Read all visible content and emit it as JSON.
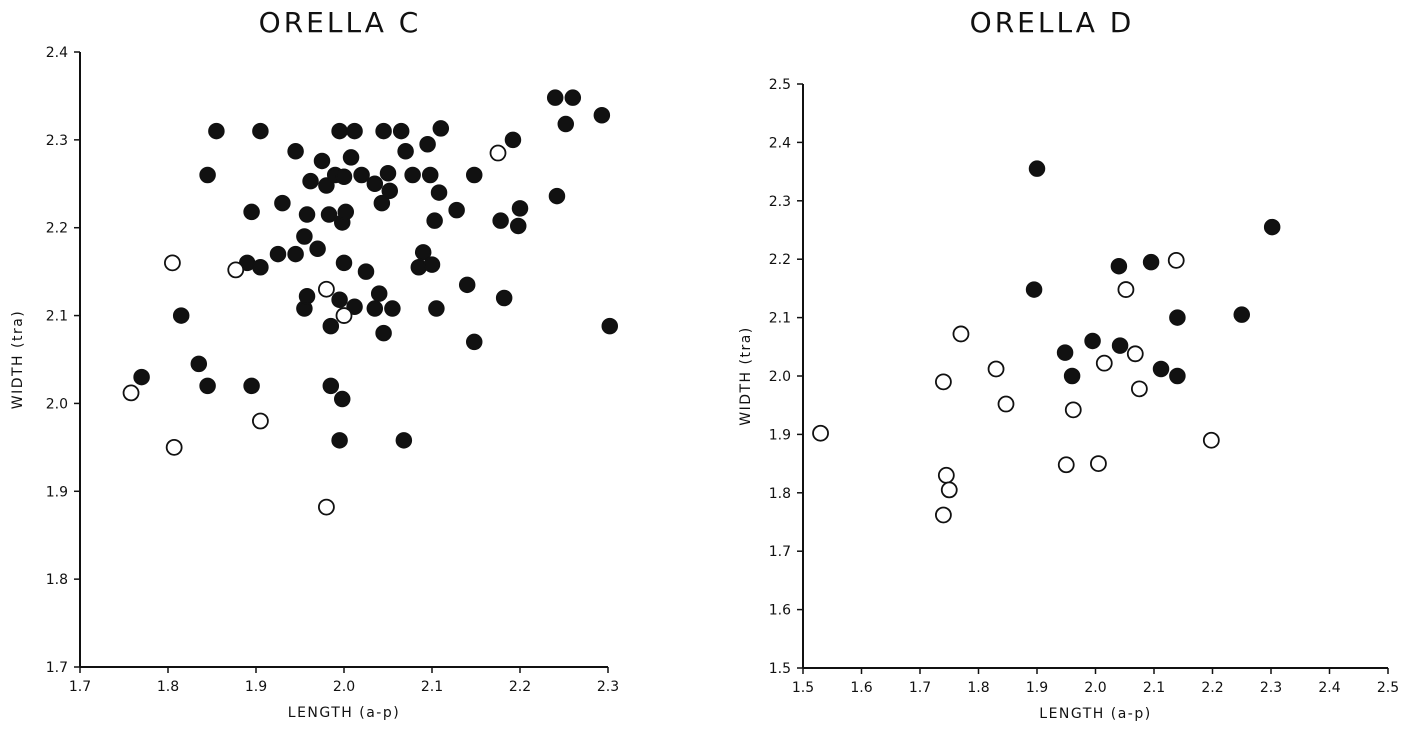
{
  "chart_data": [
    {
      "type": "scatter",
      "title": "ORELLA C",
      "xlabel": "LENGTH (a-p)",
      "ylabel": "WIDTH (tra)",
      "xlim": [
        1.7,
        2.3
      ],
      "ylim": [
        1.7,
        2.4
      ],
      "xticks": [
        "1.7",
        "1.8",
        "1.9",
        "2.0",
        "2.1",
        "2.2",
        "2.3"
      ],
      "yticks": [
        "1.7",
        "1.8",
        "1.9",
        "2.0",
        "2.1",
        "2.2",
        "2.3",
        "2.4"
      ],
      "grid": false,
      "series": [
        {
          "marker": "filled-circle",
          "points": [
            [
              1.77,
              2.03
            ],
            [
              1.815,
              2.1
            ],
            [
              1.835,
              2.045
            ],
            [
              1.845,
              2.02
            ],
            [
              1.845,
              2.26
            ],
            [
              1.855,
              2.31
            ],
            [
              1.89,
              2.16
            ],
            [
              1.895,
              2.02
            ],
            [
              1.895,
              2.218
            ],
            [
              1.905,
              2.31
            ],
            [
              1.905,
              2.155
            ],
            [
              1.925,
              2.17
            ],
            [
              1.93,
              2.228
            ],
            [
              1.945,
              2.287
            ],
            [
              1.945,
              2.17
            ],
            [
              1.955,
              2.108
            ],
            [
              1.955,
              2.19
            ],
            [
              1.958,
              2.122
            ],
            [
              1.958,
              2.215
            ],
            [
              1.962,
              2.253
            ],
            [
              1.97,
              2.176
            ],
            [
              1.975,
              2.276
            ],
            [
              1.98,
              2.248
            ],
            [
              1.983,
              2.215
            ],
            [
              1.985,
              2.088
            ],
            [
              1.985,
              2.02
            ],
            [
              1.99,
              2.26
            ],
            [
              1.995,
              2.31
            ],
            [
              1.995,
              2.118
            ],
            [
              1.995,
              1.958
            ],
            [
              1.998,
              2.206
            ],
            [
              1.998,
              2.005
            ],
            [
              2.0,
              2.258
            ],
            [
              2.0,
              2.16
            ],
            [
              2.002,
              2.218
            ],
            [
              2.008,
              2.28
            ],
            [
              2.012,
              2.31
            ],
            [
              2.012,
              2.11
            ],
            [
              2.02,
              2.26
            ],
            [
              2.025,
              2.15
            ],
            [
              2.035,
              2.25
            ],
            [
              2.035,
              2.108
            ],
            [
              2.04,
              2.125
            ],
            [
              2.043,
              2.228
            ],
            [
              2.045,
              2.31
            ],
            [
              2.045,
              2.08
            ],
            [
              2.05,
              2.262
            ],
            [
              2.052,
              2.242
            ],
            [
              2.055,
              2.108
            ],
            [
              2.065,
              2.31
            ],
            [
              2.068,
              1.958
            ],
            [
              2.07,
              2.287
            ],
            [
              2.078,
              2.26
            ],
            [
              2.085,
              2.155
            ],
            [
              2.09,
              2.172
            ],
            [
              2.095,
              2.295
            ],
            [
              2.098,
              2.26
            ],
            [
              2.1,
              2.158
            ],
            [
              2.103,
              2.208
            ],
            [
              2.105,
              2.108
            ],
            [
              2.108,
              2.24
            ],
            [
              2.11,
              2.313
            ],
            [
              2.128,
              2.22
            ],
            [
              2.14,
              2.135
            ],
            [
              2.148,
              2.26
            ],
            [
              2.148,
              2.07
            ],
            [
              2.178,
              2.208
            ],
            [
              2.182,
              2.12
            ],
            [
              2.192,
              2.3
            ],
            [
              2.198,
              2.202
            ],
            [
              2.2,
              2.222
            ],
            [
              2.24,
              2.348
            ],
            [
              2.242,
              2.236
            ],
            [
              2.252,
              2.318
            ],
            [
              2.26,
              2.348
            ],
            [
              2.293,
              2.328
            ],
            [
              2.302,
              2.088
            ]
          ]
        },
        {
          "marker": "open-circle",
          "points": [
            [
              1.758,
              2.012
            ],
            [
              1.805,
              2.16
            ],
            [
              1.807,
              1.95
            ],
            [
              1.877,
              2.152
            ],
            [
              1.905,
              1.98
            ],
            [
              1.98,
              1.882
            ],
            [
              1.98,
              2.13
            ],
            [
              2.0,
              2.1
            ],
            [
              2.175,
              2.285
            ]
          ]
        }
      ]
    },
    {
      "type": "scatter",
      "title": "ORELLA D",
      "xlabel": "LENGTH (a-p)",
      "ylabel": "WIDTH (tra)",
      "xlim": [
        1.5,
        2.5
      ],
      "ylim": [
        1.5,
        2.5
      ],
      "xticks": [
        "1.5",
        "1.6",
        "1.7",
        "1.8",
        "1.9",
        "2.0",
        "2.1",
        "2.2",
        "2.3",
        "2.4",
        "2.5"
      ],
      "yticks": [
        "1.5",
        "1.6",
        "1.7",
        "1.8",
        "1.9",
        "2.0",
        "2.1",
        "2.2",
        "2.3",
        "2.4",
        "2.5"
      ],
      "grid": false,
      "series": [
        {
          "marker": "filled-circle",
          "points": [
            [
              1.9,
              2.355
            ],
            [
              1.895,
              2.148
            ],
            [
              1.948,
              2.04
            ],
            [
              1.96,
              2.0
            ],
            [
              1.995,
              2.06
            ],
            [
              2.04,
              2.188
            ],
            [
              2.042,
              2.052
            ],
            [
              2.095,
              2.195
            ],
            [
              2.112,
              2.012
            ],
            [
              2.14,
              2.1
            ],
            [
              2.14,
              2.0
            ],
            [
              2.25,
              2.105
            ],
            [
              2.302,
              2.255
            ]
          ]
        },
        {
          "marker": "open-circle",
          "points": [
            [
              1.53,
              1.902
            ],
            [
              1.74,
              1.99
            ],
            [
              1.74,
              1.762
            ],
            [
              1.745,
              1.83
            ],
            [
              1.75,
              1.805
            ],
            [
              1.77,
              2.072
            ],
            [
              1.83,
              2.012
            ],
            [
              1.847,
              1.952
            ],
            [
              1.95,
              1.848
            ],
            [
              1.962,
              1.942
            ],
            [
              2.005,
              1.85
            ],
            [
              2.015,
              2.022
            ],
            [
              2.052,
              2.148
            ],
            [
              2.068,
              2.038
            ],
            [
              2.075,
              1.978
            ],
            [
              2.138,
              2.198
            ],
            [
              2.198,
              1.89
            ]
          ]
        }
      ]
    }
  ]
}
